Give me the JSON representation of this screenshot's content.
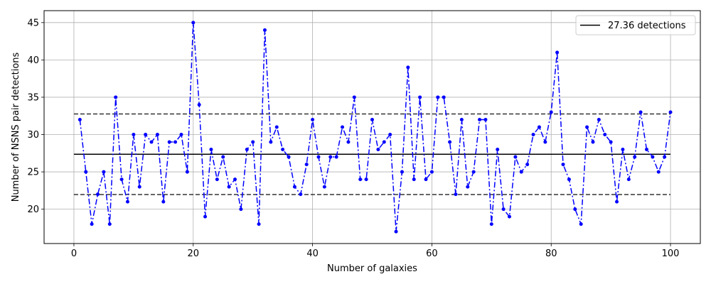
{
  "chart_data": {
    "type": "line",
    "xlabel": "Number of galaxies",
    "ylabel": "Number of NSNS pair detections",
    "xlim": [
      -5,
      105
    ],
    "ylim": [
      15.4,
      46.6
    ],
    "xticks": [
      0,
      20,
      40,
      60,
      80,
      100
    ],
    "yticks": [
      20,
      25,
      30,
      35,
      40,
      45
    ],
    "grid": true,
    "legend_position": "top-right",
    "series": [
      {
        "style": "blue dash-dot line with point markers",
        "color": "#0000ff",
        "x": [
          1,
          2,
          3,
          4,
          5,
          6,
          7,
          8,
          9,
          10,
          11,
          12,
          13,
          14,
          15,
          16,
          17,
          18,
          19,
          20,
          21,
          22,
          23,
          24,
          25,
          26,
          27,
          28,
          29,
          30,
          31,
          32,
          33,
          34,
          35,
          36,
          37,
          38,
          39,
          40,
          41,
          42,
          43,
          44,
          45,
          46,
          47,
          48,
          49,
          50,
          51,
          52,
          53,
          54,
          55,
          56,
          57,
          58,
          59,
          60,
          61,
          62,
          63,
          64,
          65,
          66,
          67,
          68,
          69,
          70,
          71,
          72,
          73,
          74,
          75,
          76,
          77,
          78,
          79,
          80,
          81,
          82,
          83,
          84,
          85,
          86,
          87,
          88,
          89,
          90,
          91,
          92,
          93,
          94,
          95,
          96,
          97,
          98,
          99,
          100
        ],
        "y": [
          32,
          25,
          18,
          22,
          25,
          18,
          35,
          24,
          21,
          30,
          23,
          30,
          29,
          30,
          21,
          29,
          29,
          30,
          25,
          45,
          34,
          19,
          28,
          24,
          27,
          23,
          24,
          20,
          28,
          29,
          18,
          44,
          29,
          31,
          28,
          27,
          23,
          22,
          26,
          32,
          27,
          23,
          27,
          27,
          31,
          29,
          35,
          24,
          24,
          32,
          28,
          29,
          30,
          17,
          25,
          39,
          24,
          35,
          24,
          25,
          35,
          35,
          29,
          22,
          32,
          23,
          25,
          32,
          32,
          18,
          28,
          20,
          19,
          27,
          25,
          26,
          30,
          31,
          29,
          33,
          41,
          26,
          24,
          20,
          18,
          31,
          29,
          32,
          30,
          29,
          21,
          28,
          24,
          27,
          33,
          28,
          27,
          25,
          27,
          33
        ]
      }
    ],
    "reference_lines": [
      {
        "name": "27.36 detections",
        "y": 27.36,
        "x_range": [
          0,
          100
        ],
        "style": "solid",
        "color": "#000000",
        "in_legend": true
      },
      {
        "y": 32.76,
        "x_range": [
          0,
          100
        ],
        "style": "dashed",
        "color": "#333333",
        "in_legend": false
      },
      {
        "y": 21.96,
        "x_range": [
          0,
          100
        ],
        "style": "dashed",
        "color": "#333333",
        "in_legend": false
      }
    ]
  }
}
